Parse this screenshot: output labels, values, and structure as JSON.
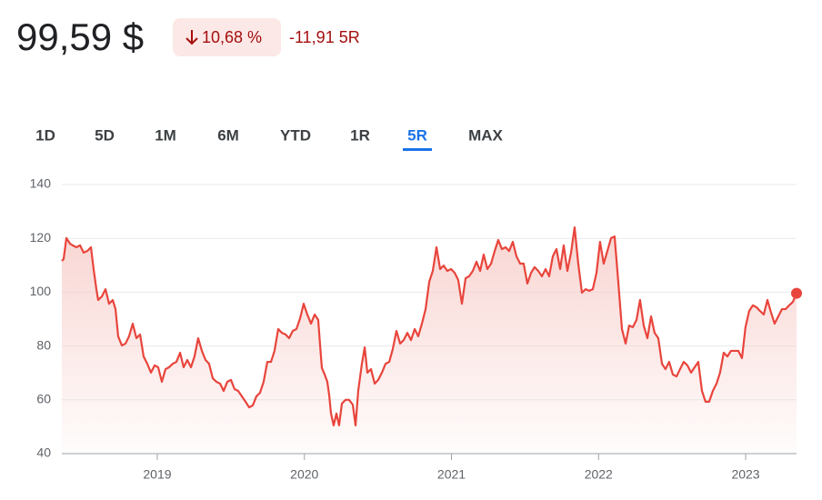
{
  "header": {
    "price": "99,59 $",
    "change_percent": "10,68 %",
    "change_abs": "-11,91 5R"
  },
  "tabs": {
    "items": [
      "1D",
      "5D",
      "1M",
      "6M",
      "YTD",
      "1R",
      "5R",
      "MAX"
    ],
    "selected": 6
  },
  "chart_data": {
    "type": "line",
    "color": "#e8453c",
    "fill_color": "#f6c7c3",
    "xlim": [
      2018.351,
      2023.346
    ],
    "xticks": [
      2019,
      2020,
      2021,
      2022,
      2023
    ],
    "ylim": [
      40,
      140
    ],
    "yticks": [
      40,
      60,
      80,
      100,
      120,
      140
    ],
    "grid": true,
    "x": [
      2018.351,
      2018.363,
      2018.382,
      2018.407,
      2018.425,
      2018.45,
      2018.475,
      2018.499,
      2018.524,
      2018.549,
      2018.567,
      2018.586,
      2018.598,
      2018.623,
      2018.648,
      2018.672,
      2018.697,
      2018.716,
      2018.734,
      2018.759,
      2018.784,
      2018.808,
      2018.833,
      2018.858,
      2018.883,
      2018.907,
      2018.932,
      2018.957,
      2018.982,
      2019.006,
      2019.031,
      2019.056,
      2019.08,
      2019.105,
      2019.13,
      2019.155,
      2019.179,
      2019.204,
      2019.229,
      2019.253,
      2019.278,
      2019.303,
      2019.328,
      2019.352,
      2019.377,
      2019.402,
      2019.427,
      2019.451,
      2019.476,
      2019.501,
      2019.525,
      2019.55,
      2019.575,
      2019.6,
      2019.624,
      2019.649,
      2019.674,
      2019.698,
      2019.723,
      2019.748,
      2019.773,
      2019.797,
      2019.822,
      2019.847,
      2019.872,
      2019.896,
      2019.921,
      2019.946,
      2019.971,
      2019.995,
      2020.02,
      2020.045,
      2020.07,
      2020.094,
      2020.107,
      2020.119,
      2020.138,
      2020.156,
      2020.169,
      2020.181,
      2020.199,
      2020.218,
      2020.236,
      2020.255,
      2020.28,
      2020.304,
      2020.329,
      2020.348,
      2020.366,
      2020.391,
      2020.41,
      2020.428,
      2020.453,
      2020.478,
      2020.502,
      2020.527,
      2020.552,
      2020.577,
      2020.601,
      2020.626,
      2020.651,
      2020.675,
      2020.7,
      2020.725,
      2020.75,
      2020.774,
      2020.799,
      2020.824,
      2020.849,
      2020.873,
      2020.898,
      2020.923,
      2020.947,
      2020.972,
      2020.997,
      2021.022,
      2021.046,
      2021.071,
      2021.096,
      2021.12,
      2021.145,
      2021.17,
      2021.195,
      2021.219,
      2021.244,
      2021.269,
      2021.294,
      2021.318,
      2021.343,
      2021.368,
      2021.392,
      2021.417,
      2021.442,
      2021.467,
      2021.491,
      2021.516,
      2021.541,
      2021.565,
      2021.59,
      2021.615,
      2021.64,
      2021.664,
      2021.689,
      2021.714,
      2021.739,
      2021.763,
      2021.788,
      2021.813,
      2021.837,
      2021.862,
      2021.887,
      2021.912,
      2021.936,
      2021.961,
      2021.986,
      2022.01,
      2022.035,
      2022.06,
      2022.085,
      2022.109,
      2022.134,
      2022.159,
      2022.184,
      2022.208,
      2022.233,
      2022.258,
      2022.282,
      2022.307,
      2022.332,
      2022.357,
      2022.381,
      2022.406,
      2022.431,
      2022.455,
      2022.48,
      2022.505,
      2022.53,
      2022.554,
      2022.579,
      2022.604,
      2022.629,
      2022.653,
      2022.678,
      2022.703,
      2022.727,
      2022.752,
      2022.777,
      2022.802,
      2022.826,
      2022.851,
      2022.876,
      2022.9,
      2022.925,
      2022.95,
      2022.975,
      2022.999,
      2023.024,
      2023.049,
      2023.074,
      2023.098,
      2023.123,
      2023.148,
      2023.173,
      2023.197,
      2023.222,
      2023.247,
      2023.271,
      2023.296,
      2023.321,
      2023.346
    ],
    "values": [
      111.6,
      112.3,
      120.1,
      118.0,
      117.4,
      116.7,
      117.4,
      114.7,
      115.3,
      116.7,
      108.6,
      101.1,
      97.1,
      98.4,
      101.1,
      95.7,
      97.1,
      93.7,
      83.6,
      80.2,
      80.9,
      83.6,
      88.3,
      82.9,
      84.3,
      76.1,
      73.4,
      70.1,
      72.8,
      72.1,
      66.7,
      71.4,
      72.1,
      73.4,
      74.1,
      77.5,
      72.1,
      74.8,
      72.1,
      76.1,
      82.9,
      78.2,
      74.8,
      73.4,
      68.0,
      66.7,
      66.0,
      63.3,
      66.7,
      67.4,
      64.0,
      63.3,
      61.3,
      59.3,
      57.2,
      57.9,
      61.3,
      62.6,
      66.7,
      74.1,
      74.1,
      78.2,
      86.3,
      84.9,
      84.3,
      82.9,
      85.6,
      86.3,
      90.3,
      95.7,
      91.7,
      88.3,
      91.7,
      89.7,
      80.2,
      71.8,
      69.4,
      66.7,
      61.6,
      54.9,
      50.5,
      54.9,
      50.5,
      58.6,
      60.0,
      60.0,
      58.2,
      50.5,
      63.3,
      73.4,
      79.5,
      70.1,
      71.4,
      66.0,
      67.4,
      70.1,
      73.4,
      74.1,
      78.9,
      85.6,
      80.9,
      82.2,
      84.9,
      82.2,
      86.3,
      83.6,
      88.3,
      93.7,
      103.9,
      107.9,
      116.7,
      108.6,
      109.9,
      107.9,
      108.6,
      107.2,
      104.5,
      95.7,
      105.2,
      105.9,
      107.9,
      111.3,
      107.9,
      114.0,
      108.6,
      110.6,
      115.3,
      119.4,
      116.0,
      116.7,
      115.3,
      118.7,
      113.3,
      110.6,
      110.6,
      103.2,
      107.2,
      109.3,
      107.9,
      105.9,
      108.6,
      105.9,
      113.3,
      116.0,
      108.6,
      117.4,
      107.9,
      114.7,
      124.1,
      110.6,
      99.8,
      101.1,
      100.5,
      101.1,
      107.2,
      118.7,
      110.6,
      115.3,
      120.1,
      120.7,
      103.9,
      86.3,
      80.9,
      87.6,
      87.0,
      89.7,
      97.1,
      87.6,
      82.9,
      91.0,
      84.9,
      82.9,
      73.4,
      71.4,
      74.1,
      69.4,
      68.7,
      71.4,
      74.1,
      72.8,
      70.1,
      72.1,
      74.1,
      63.3,
      59.3,
      59.3,
      63.3,
      66.0,
      70.1,
      77.5,
      76.1,
      78.2,
      78.2,
      78.2,
      75.5,
      87.0,
      93.0,
      95.1,
      94.4,
      93.0,
      91.7,
      97.1,
      92.4,
      88.3,
      91.0,
      93.7,
      93.7,
      95.1,
      96.4,
      99.59
    ]
  }
}
